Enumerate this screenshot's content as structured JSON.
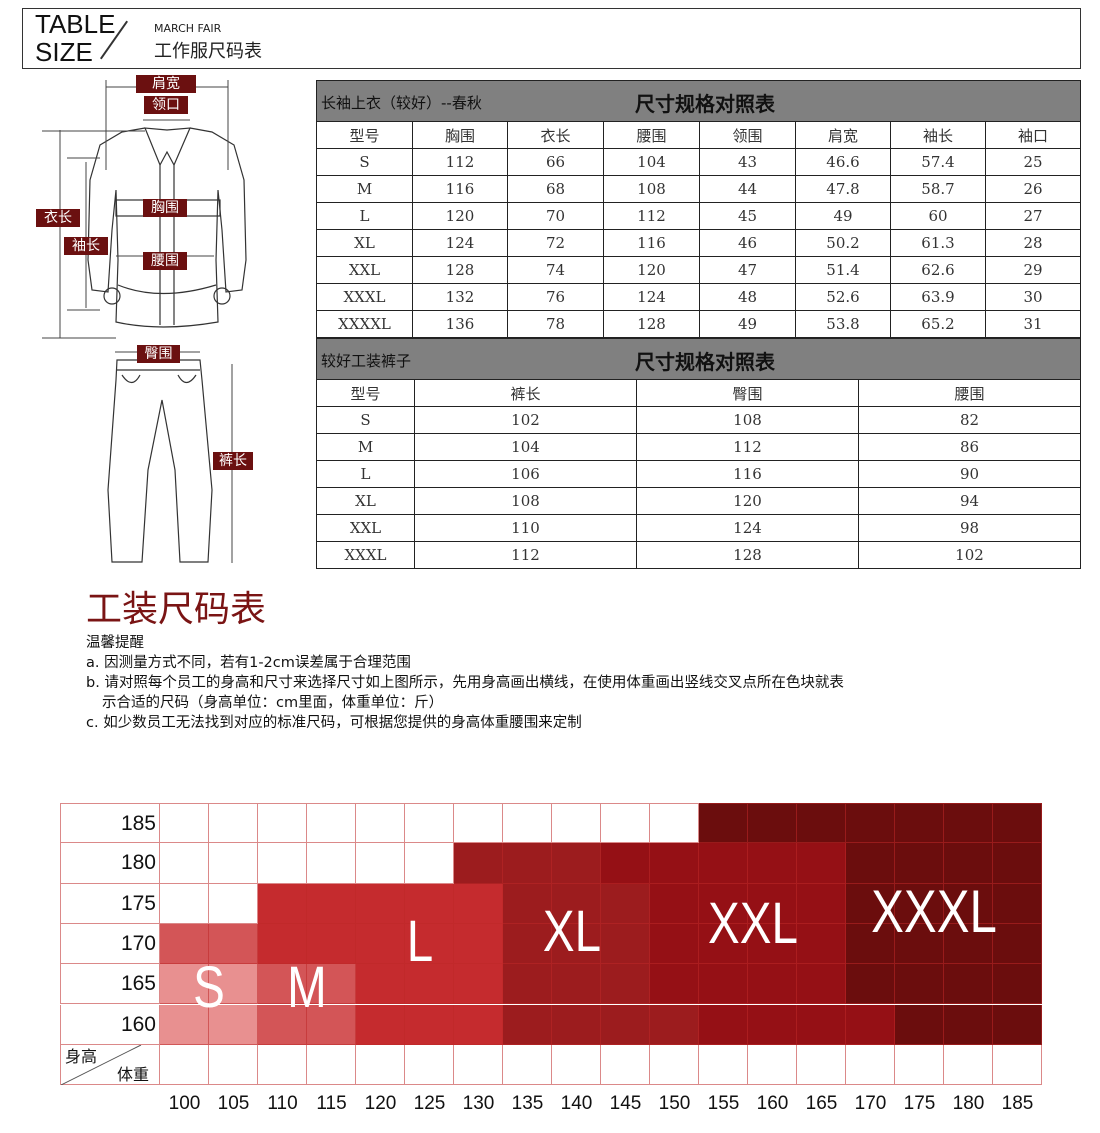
{
  "header": {
    "line1": "TABLE",
    "line2": "SIZE",
    "subtitle": "MARCH FAIR",
    "title": "工作服尺码表"
  },
  "diagram_labels": {
    "shoulder": "肩宽",
    "collar": "领口",
    "length": "衣长",
    "sleeve": "袖长",
    "chest": "胸围",
    "waist": "腰围",
    "hip": "臀围",
    "trouser_length": "裤长"
  },
  "jacket_table": {
    "left_title": "长袖上衣（较好）--春秋",
    "center_title": "尺寸规格对照表",
    "columns": [
      "型号",
      "胸围",
      "衣长",
      "腰围",
      "领围",
      "肩宽",
      "袖长",
      "袖口"
    ],
    "rows": [
      [
        "S",
        "112",
        "66",
        "104",
        "43",
        "46.6",
        "57.4",
        "25"
      ],
      [
        "M",
        "116",
        "68",
        "108",
        "44",
        "47.8",
        "58.7",
        "26"
      ],
      [
        "L",
        "120",
        "70",
        "112",
        "45",
        "49",
        "60",
        "27"
      ],
      [
        "XL",
        "124",
        "72",
        "116",
        "46",
        "50.2",
        "61.3",
        "28"
      ],
      [
        "XXL",
        "128",
        "74",
        "120",
        "47",
        "51.4",
        "62.6",
        "29"
      ],
      [
        "XXXL",
        "132",
        "76",
        "124",
        "48",
        "52.6",
        "63.9",
        "30"
      ],
      [
        "XXXXL",
        "136",
        "78",
        "128",
        "49",
        "53.8",
        "65.2",
        "31"
      ]
    ]
  },
  "pants_table": {
    "left_title": "较好工装裤子",
    "center_title": "尺寸规格对照表",
    "columns": [
      "型号",
      "裤长",
      "臀围",
      "腰围"
    ],
    "rows": [
      [
        "S",
        "102",
        "108",
        "82"
      ],
      [
        "M",
        "104",
        "112",
        "86"
      ],
      [
        "L",
        "106",
        "116",
        "90"
      ],
      [
        "XL",
        "108",
        "120",
        "94"
      ],
      [
        "XXL",
        "110",
        "124",
        "98"
      ],
      [
        "XXXL",
        "112",
        "128",
        "102"
      ]
    ]
  },
  "section_title": "工装尺码表",
  "notes": {
    "heading": "温馨提醒",
    "a": "a. 因测量方式不同，若有1-2cm误差属于合理范围",
    "b1": "b. 请对照每个员工的身高和尺寸来选择尺寸如上图所示，先用身高画出横线，在使用体重画出竖线交叉点所在色块就表",
    "b2": "示合适的尺码（身高单位：cm里面，体重单位：斤）",
    "c": "c. 如少数员工无法找到对应的标准尺码，可根据您提供的身高体重腰围来定制"
  },
  "chart_data": {
    "type": "heatmap",
    "ylabel": "身高",
    "xlabel": "体重",
    "heights": [
      "185",
      "180",
      "175",
      "170",
      "165",
      "160"
    ],
    "weights": [
      "100",
      "105",
      "110",
      "115",
      "120",
      "125",
      "130",
      "135",
      "140",
      "145",
      "150",
      "155",
      "160",
      "165",
      "170",
      "175",
      "180",
      "185"
    ],
    "grid": [
      [
        "",
        "",
        "",
        "",
        "",
        "",
        "",
        "",
        "",
        "",
        "",
        "XXXL",
        "XXXL",
        "XXXL",
        "XXXL",
        "XXXL",
        "XXXL",
        "XXXL"
      ],
      [
        "",
        "",
        "",
        "",
        "",
        "",
        "XL",
        "XL",
        "XL",
        "XXL",
        "XXL",
        "XXL",
        "XXL",
        "XXL",
        "XXXL",
        "XXXL",
        "XXXL",
        "XXXL"
      ],
      [
        "",
        "",
        "L",
        "L",
        "L",
        "L",
        "L",
        "XL",
        "XL",
        "XL",
        "XXL",
        "XXL",
        "XXL",
        "XXL",
        "XXXL",
        "XXXL",
        "XXXL",
        "XXXL"
      ],
      [
        "M",
        "M",
        "L",
        "L",
        "L",
        "L",
        "L",
        "XL",
        "XL",
        "XL",
        "XXL",
        "XXL",
        "XXL",
        "XXL",
        "XXXL",
        "XXXL",
        "XXXL",
        "XXXL"
      ],
      [
        "S",
        "S",
        "M",
        "M",
        "L",
        "L",
        "L",
        "XL",
        "XL",
        "XL",
        "XXL",
        "XXL",
        "XXL",
        "XXL",
        "XXXL",
        "XXXL",
        "XXXL",
        "XXXL"
      ],
      [
        "S",
        "S",
        "M",
        "M",
        "L",
        "L",
        "L",
        "XL",
        "XL",
        "XL",
        "XL",
        "XXL",
        "XXL",
        "XXL",
        "XXL",
        "XXXL",
        "XXXL",
        "XXXL"
      ]
    ],
    "sizes": [
      "S",
      "M",
      "L",
      "XL",
      "XXL",
      "XXXL"
    ],
    "colors": {
      "S": "#e89090",
      "M": "#d35557",
      "L": "#c52b2e",
      "XL": "#9c1c1e",
      "XXL": "#951015",
      "XXXL": "#6b0d0d"
    }
  }
}
